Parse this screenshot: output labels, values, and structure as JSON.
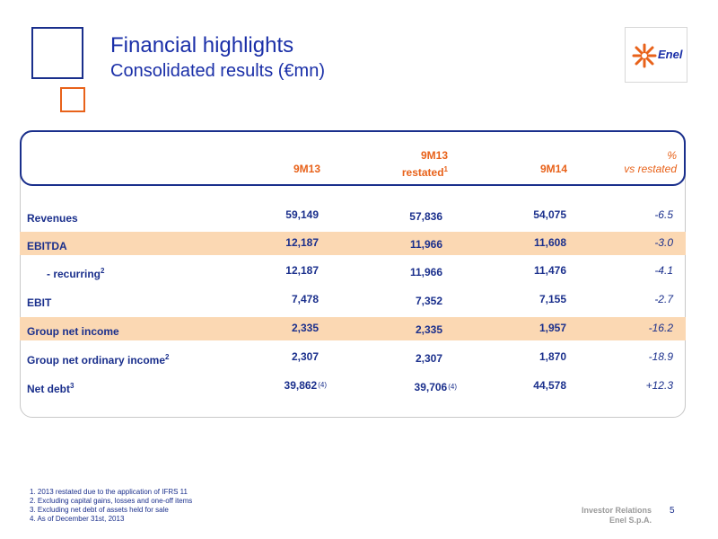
{
  "header": {
    "title": "Financial highlights",
    "subtitle": "Consolidated results (€mn)"
  },
  "logo": {
    "text": "Enel",
    "colors": {
      "flame": "#e8621a",
      "text": "#1a2fa8"
    }
  },
  "table": {
    "columns": [
      {
        "line1": "",
        "line2": "9M13",
        "sup": ""
      },
      {
        "line1": "9M13",
        "line2": "restated",
        "sup": "1"
      },
      {
        "line1": "",
        "line2": "9M14",
        "sup": ""
      },
      {
        "line1": "%",
        "line2": "vs restated",
        "sup": ""
      }
    ],
    "rows": [
      {
        "label": "Revenues",
        "sup": "",
        "v1": "59,149",
        "n1": "",
        "v2": "57,836",
        "n2": "",
        "v3": "54,075",
        "pct": "-6.5"
      },
      {
        "label": "EBITDA",
        "sup": "",
        "v1": "12,187",
        "n1": "",
        "v2": "11,966",
        "n2": "",
        "v3": "11,608",
        "pct": "-3.0"
      },
      {
        "label": "- recurring",
        "sup": "2",
        "v1": "12,187",
        "n1": "",
        "v2": "11,966",
        "n2": "",
        "v3": "11,476",
        "pct": "-4.1"
      },
      {
        "label": "EBIT",
        "sup": "",
        "v1": "7,478",
        "n1": "",
        "v2": "7,352",
        "n2": "",
        "v3": "7,155",
        "pct": "-2.7"
      },
      {
        "label": "Group net income",
        "sup": "",
        "v1": "2,335",
        "n1": "",
        "v2": "2,335",
        "n2": "",
        "v3": "1,957",
        "pct": "-16.2"
      },
      {
        "label": "Group net ordinary income",
        "sup": "2",
        "v1": "2,307",
        "n1": "",
        "v2": "2,307",
        "n2": "",
        "v3": "1,870",
        "pct": "-18.9"
      },
      {
        "label": "Net debt",
        "sup": "3",
        "v1": "39,862",
        "n1": "(4)",
        "v2": "39,706",
        "n2": "(4)",
        "v3": "44,578",
        "pct": "+12.3"
      }
    ],
    "highlight_color": "#fbd8b3"
  },
  "footnotes": [
    "1. 2013 restated due to the application of IFRS 11",
    "2. Excluding capital gains, losses and one-off items",
    "3. Excluding net debt of assets held for sale",
    "4. As of December 31st, 2013"
  ],
  "footer": {
    "line1": "Investor Relations",
    "line2": "Enel S.p.A.",
    "page": "5"
  }
}
